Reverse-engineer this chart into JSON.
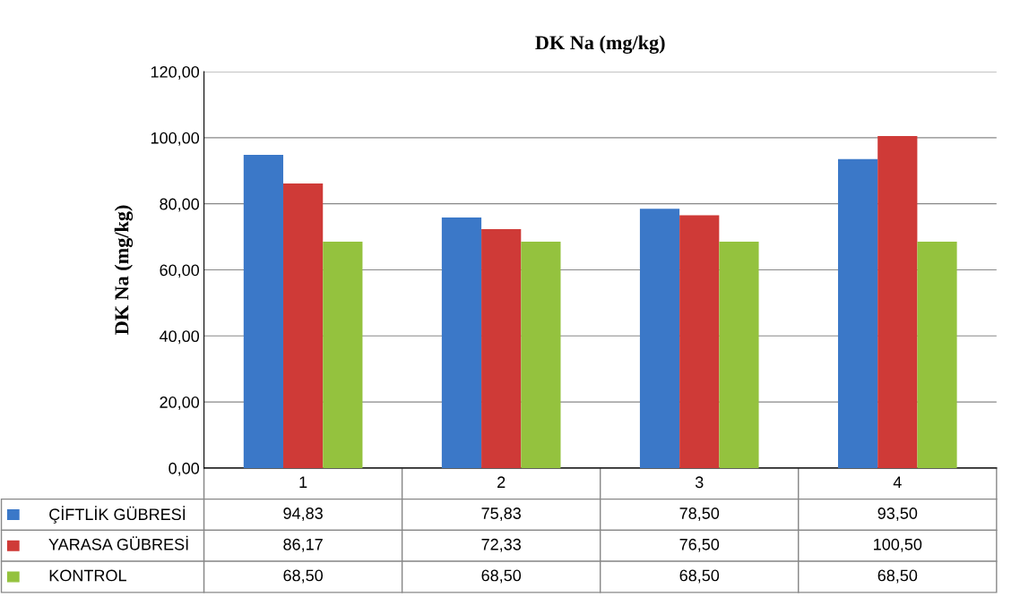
{
  "chart_data": {
    "type": "bar",
    "title": "DK Na (mg/kg)",
    "ylabel": "DK Na (mg/kg)",
    "categories": [
      "1",
      "2",
      "3",
      "4"
    ],
    "series": [
      {
        "name": "ÇİFTLİK GÜBRESİ",
        "color": "#3b78c8",
        "values": [
          94.83,
          75.83,
          78.5,
          93.5
        ],
        "value_labels": [
          "94,83",
          "75,83",
          "78,50",
          "93,50"
        ]
      },
      {
        "name": "YARASA GÜBRESİ",
        "color": "#cf3a37",
        "values": [
          86.17,
          72.33,
          76.5,
          100.5
        ],
        "value_labels": [
          "86,17",
          "72,33",
          "76,50",
          "100,50"
        ]
      },
      {
        "name": "KONTROL",
        "color": "#94c23e",
        "values": [
          68.5,
          68.5,
          68.5,
          68.5
        ],
        "value_labels": [
          "68,50",
          "68,50",
          "68,50",
          "68,50"
        ]
      }
    ],
    "ylim": [
      0,
      120
    ],
    "yticks": [
      {
        "value": 0,
        "label": "0,00"
      },
      {
        "value": 20,
        "label": "20,00"
      },
      {
        "value": 40,
        "label": "40,00"
      },
      {
        "value": 60,
        "label": "60,00"
      },
      {
        "value": 80,
        "label": "80,00"
      },
      {
        "value": 100,
        "label": "100,00"
      },
      {
        "value": 120,
        "label": "120,00"
      }
    ],
    "grid": "y",
    "legend": "bottom left"
  }
}
